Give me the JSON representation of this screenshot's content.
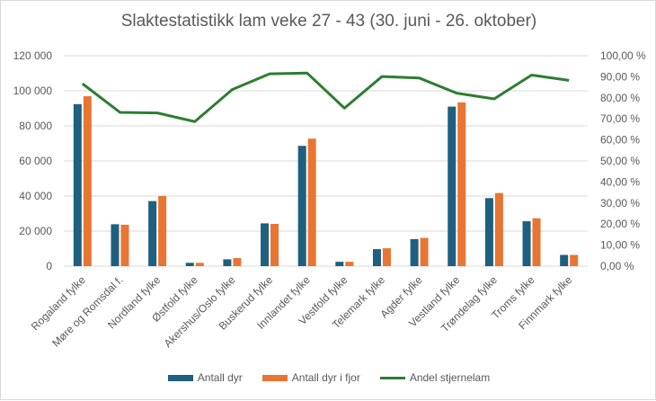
{
  "chart_data": {
    "type": "bar",
    "title": "Slaktestatistikk lam veke 27 - 43 (30. juni - 26. oktober)",
    "categories": [
      "Rogaland fylke",
      "Møre og Romsdal f.",
      "Nordland fylke",
      "Østfold fylke",
      "Akershus/Oslo fylke",
      "Buskerud fylke",
      "Innlandet fylke",
      "Vestfold fylke",
      "Telemark fylke",
      "Agder fylke",
      "Vestland fylke",
      "Trøndelag fylke",
      "Troms fylke",
      "Finnmark fylke"
    ],
    "series": [
      {
        "name": "Antall dyr",
        "type": "bar",
        "axis": "left",
        "color": "#1f5f7f",
        "values": [
          92400,
          23900,
          37100,
          1900,
          3900,
          24400,
          68600,
          2500,
          9700,
          15400,
          91000,
          38800,
          25600,
          6400
        ]
      },
      {
        "name": "Antall dyr i fjor",
        "type": "bar",
        "axis": "left",
        "color": "#e97532",
        "values": [
          96900,
          23600,
          40000,
          1900,
          4600,
          24100,
          72700,
          2500,
          10200,
          16100,
          93400,
          41700,
          27300,
          6400
        ]
      },
      {
        "name": "Andel stjernelam",
        "type": "line",
        "axis": "right",
        "color": "#2e7d32",
        "values": [
          86.7,
          73.1,
          72.8,
          68.7,
          83.9,
          91.4,
          91.8,
          75.1,
          90.1,
          89.4,
          82.2,
          79.5,
          90.8,
          88.3
        ]
      }
    ],
    "ylim_left": [
      0,
      120000
    ],
    "yticks_left": [
      "0",
      "20 000",
      "40 000",
      "60 000",
      "80 000",
      "100 000",
      "120 000"
    ],
    "ylim_right": [
      0,
      100
    ],
    "yticks_right": [
      "0,00 %",
      "10,00 %",
      "20,00 %",
      "30,00 %",
      "40,00 %",
      "50,00 %",
      "60,00 %",
      "70,00 %",
      "80,00 %",
      "90,00 %",
      "100,00 %"
    ],
    "grid": true,
    "legend": "bottom"
  }
}
